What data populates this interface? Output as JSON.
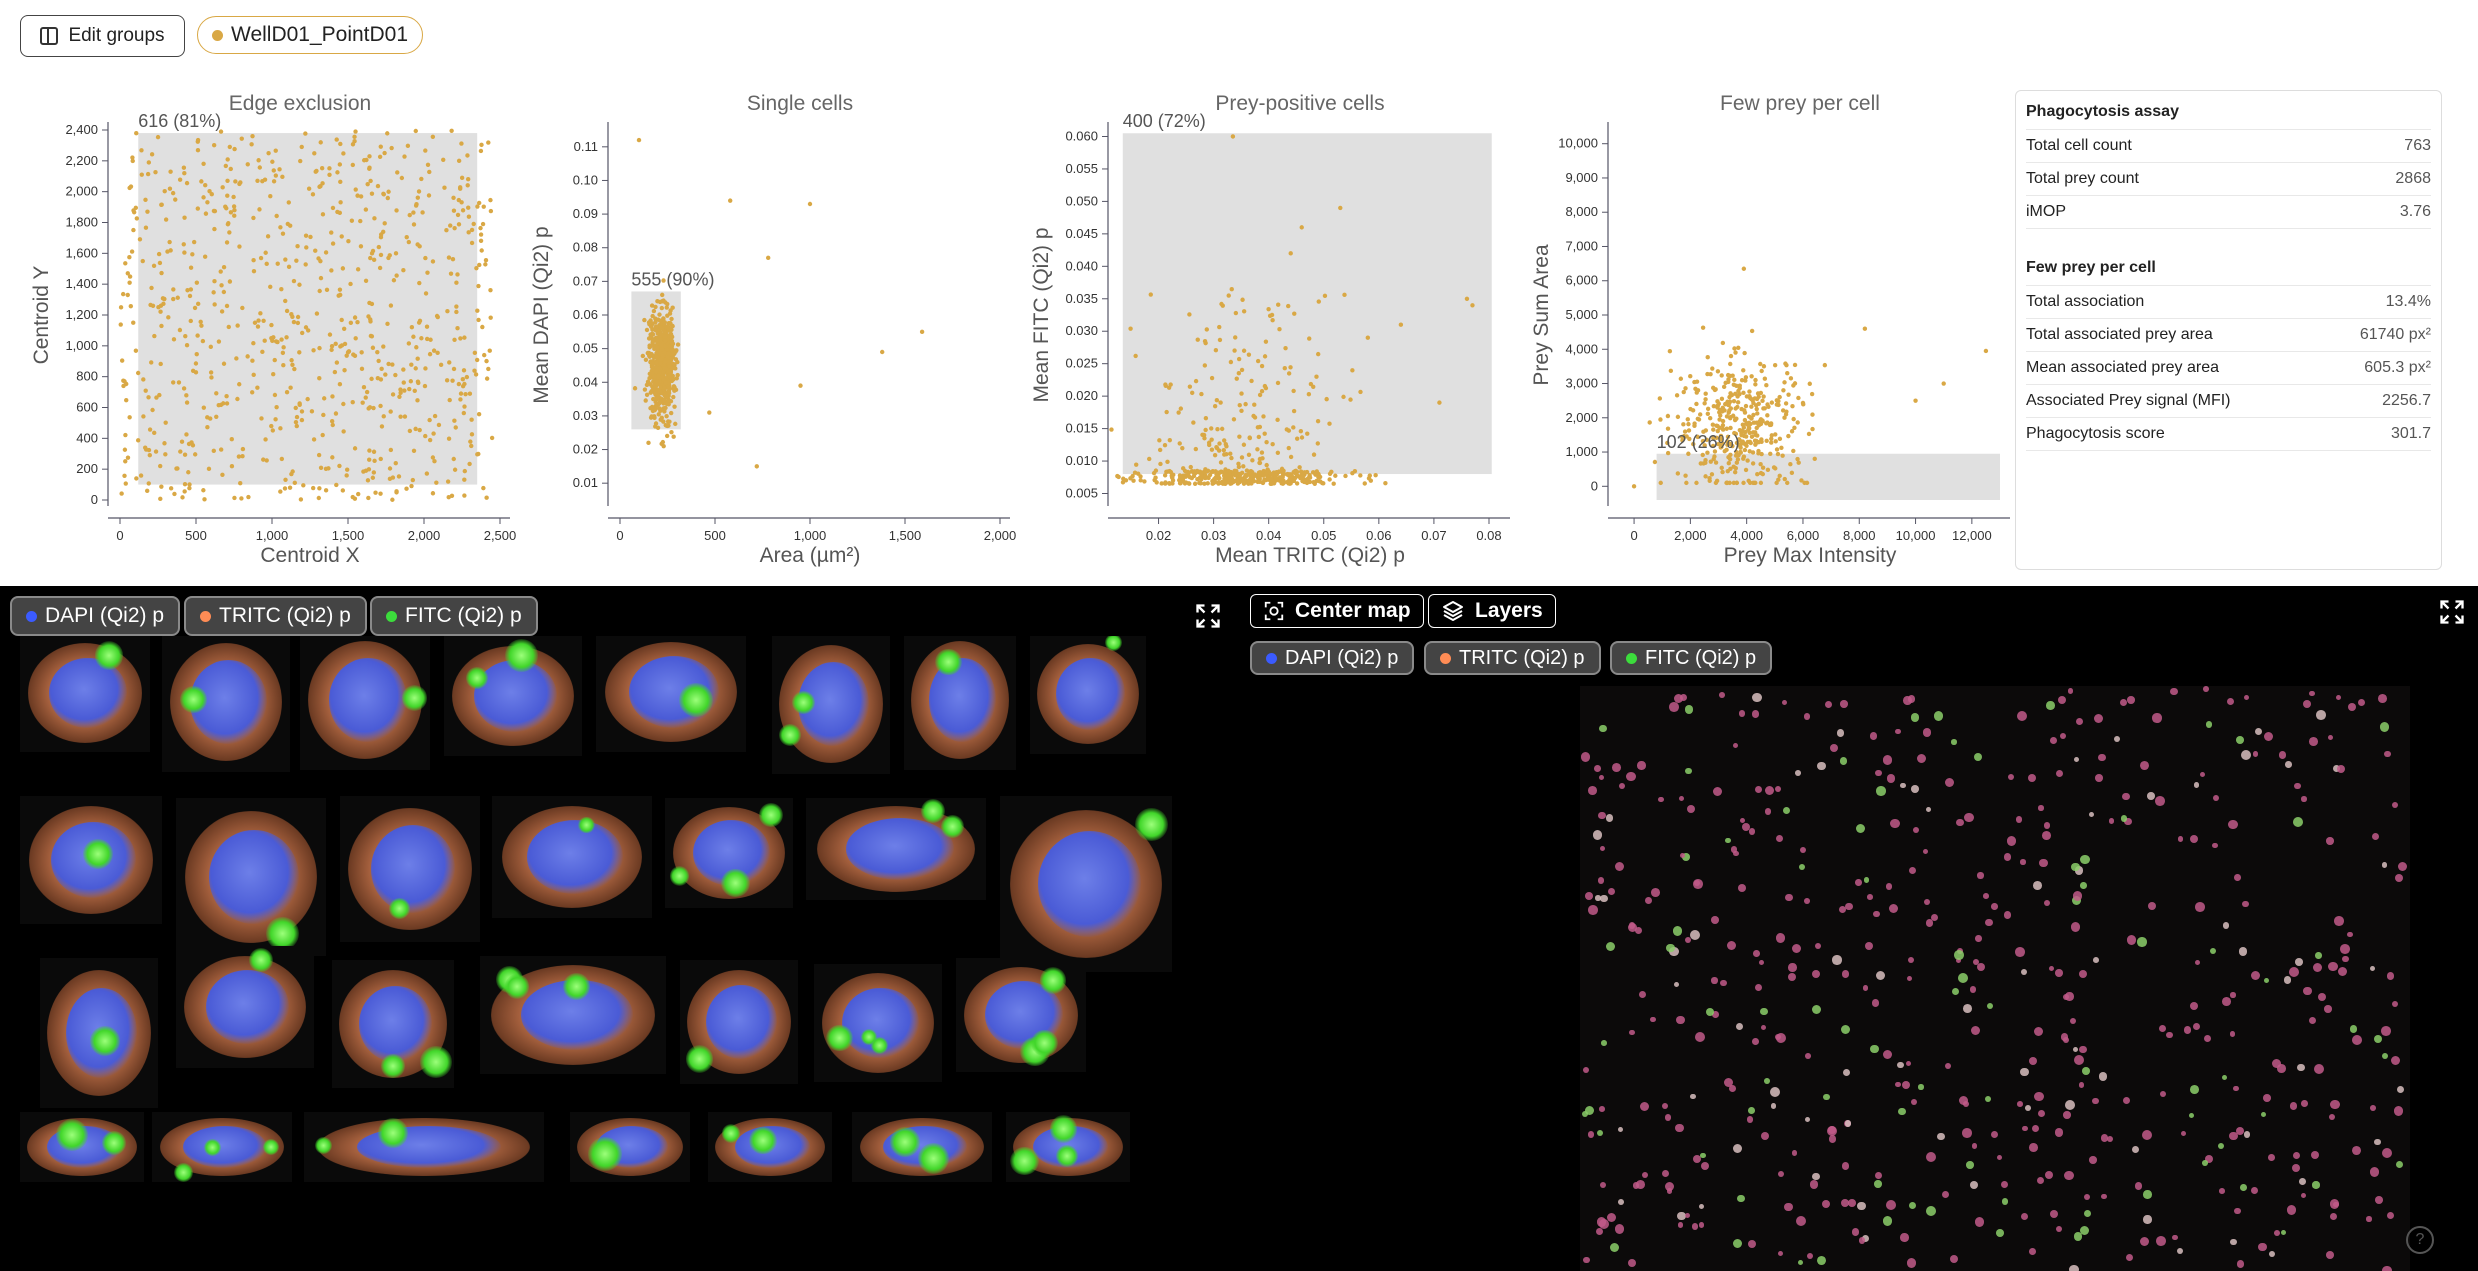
{
  "toolbar": {
    "edit_groups_label": "Edit groups",
    "well_label": "WellD01_PointD01",
    "well_color": "#d9a845"
  },
  "colors": {
    "accent": "#d9a845",
    "gate": "#e0e0e0",
    "dapi": "#3b5bff",
    "tritc": "#ff8c55",
    "fitc": "#3cdc3c"
  },
  "chart_data": [
    {
      "type": "scatter",
      "title": "Edge exclusion",
      "xlabel": "Centroid X",
      "ylabel": "Centroid Y",
      "xlim": [
        0,
        2500
      ],
      "ylim": [
        0,
        2400
      ],
      "xticks": [
        "0",
        "500",
        "1,000",
        "1,500",
        "2,000",
        "2,500"
      ],
      "yticks": [
        "0",
        "200",
        "400",
        "600",
        "800",
        "1,000",
        "1,200",
        "1,400",
        "1,600",
        "1,800",
        "2,000",
        "2,200",
        "2,400"
      ],
      "gate": {
        "x": [
          120,
          2350
        ],
        "y": [
          100,
          2380
        ],
        "label": "616 (81%)"
      },
      "point_count": 763,
      "distribution": "uniform",
      "x_range": [
        0,
        2450
      ],
      "y_range": [
        0,
        2400
      ]
    },
    {
      "type": "scatter",
      "title": "Single cells",
      "xlabel": "Area (µm²)",
      "ylabel": "Mean DAPI (Qi2) p",
      "xlim": [
        0,
        2000
      ],
      "ylim": [
        0.005,
        0.115
      ],
      "xticks": [
        "0",
        "500",
        "1,000",
        "1,500",
        "2,000"
      ],
      "yticks": [
        "0.01",
        "0.02",
        "0.03",
        "0.04",
        "0.05",
        "0.06",
        "0.07",
        "0.08",
        "0.09",
        "0.10",
        "0.11"
      ],
      "gate": {
        "x": [
          60,
          320
        ],
        "y": [
          0.026,
          0.067
        ],
        "label": "555 (90%)"
      },
      "point_count": 616,
      "distribution": "cluster",
      "center": [
        220,
        0.045
      ],
      "spread": [
        70,
        0.008
      ],
      "outliers": [
        [
          100,
          0.112
        ],
        [
          580,
          0.094
        ],
        [
          1000,
          0.093
        ],
        [
          780,
          0.077
        ],
        [
          1590,
          0.055
        ],
        [
          1380,
          0.049
        ],
        [
          950,
          0.039
        ],
        [
          720,
          0.015
        ],
        [
          150,
          0.022
        ],
        [
          470,
          0.031
        ]
      ]
    },
    {
      "type": "scatter",
      "title": "Prey-positive cells",
      "xlabel": "Mean TRITC (Qi2) p",
      "ylabel": "Mean FITC (Qi2) p",
      "xlim": [
        0.013,
        0.082
      ],
      "ylim": [
        0.004,
        0.061
      ],
      "xticks": [
        "0.02",
        "0.03",
        "0.04",
        "0.05",
        "0.06",
        "0.07",
        "0.08"
      ],
      "yticks": [
        "0.005",
        "0.010",
        "0.015",
        "0.020",
        "0.025",
        "0.030",
        "0.035",
        "0.040",
        "0.045",
        "0.050",
        "0.055",
        "0.060"
      ],
      "gate": {
        "x": [
          0.0135,
          0.0805
        ],
        "y": [
          0.008,
          0.0605
        ],
        "label": "400 (72%)"
      },
      "point_count": 555,
      "distribution": "skewed",
      "center": [
        0.035,
        0.008
      ],
      "spread": [
        0.009,
        0.0
      ],
      "outliers": [
        [
          0.046,
          0.046
        ],
        [
          0.044,
          0.042
        ],
        [
          0.053,
          0.049
        ],
        [
          0.076,
          0.035
        ],
        [
          0.077,
          0.034
        ],
        [
          0.0335,
          0.06
        ],
        [
          0.064,
          0.031
        ],
        [
          0.071,
          0.019
        ],
        [
          0.058,
          0.029
        ]
      ]
    },
    {
      "type": "scatter",
      "title": "Few prey per cell",
      "xlabel": "Prey Max Intensity",
      "ylabel": "Prey Sum Area",
      "xlim": [
        -500,
        13000
      ],
      "ylim": [
        -400,
        10400
      ],
      "xticks": [
        "0",
        "2,000",
        "4,000",
        "6,000",
        "8,000",
        "10,000",
        "12,000"
      ],
      "yticks": [
        "0",
        "1,000",
        "2,000",
        "3,000",
        "4,000",
        "5,000",
        "6,000",
        "7,000",
        "8,000",
        "9,000",
        "10,000"
      ],
      "gate": {
        "x": [
          800,
          13000
        ],
        "y": [
          -400,
          950
        ],
        "label": "102 (26%)"
      },
      "point_count": 400,
      "distribution": "blob",
      "center": [
        3800,
        1800
      ],
      "spread": [
        1200,
        1000
      ],
      "outliers": [
        [
          3900,
          6350
        ],
        [
          12500,
          3950
        ],
        [
          0,
          0
        ],
        [
          11000,
          3000
        ],
        [
          10000,
          2500
        ],
        [
          8200,
          4600
        ]
      ]
    }
  ],
  "stats": {
    "section1_title": "Phagocytosis assay",
    "rows1": [
      {
        "label": "Total cell count",
        "value": "763"
      },
      {
        "label": "Total prey count",
        "value": "2868"
      },
      {
        "label": "iMOP",
        "value": "3.76"
      }
    ],
    "section2_title": "Few prey per cell",
    "rows2": [
      {
        "label": "Total association",
        "value": "13.4%"
      },
      {
        "label": "Total associated prey area",
        "value": "61740 px²"
      },
      {
        "label": "Mean associated prey area",
        "value": "605.3 px²"
      },
      {
        "label": "Associated Prey signal (MFI)",
        "value": "2256.7"
      },
      {
        "label": "Phagocytosis score",
        "value": "301.7"
      }
    ]
  },
  "channels": [
    {
      "label": "DAPI (Qi2) p",
      "color": "#3b5bff"
    },
    {
      "label": "TRITC (Qi2) p",
      "color": "#ff8c55"
    },
    {
      "label": "FITC (Qi2) p",
      "color": "#3cdc3c"
    }
  ],
  "map_controls": {
    "center_label": "Center map",
    "layers_label": "Layers"
  },
  "icons": {
    "expand": "expand-icon",
    "help": "help-icon",
    "center": "focus-icon",
    "layers": "layers-icon"
  },
  "help_label": "?"
}
